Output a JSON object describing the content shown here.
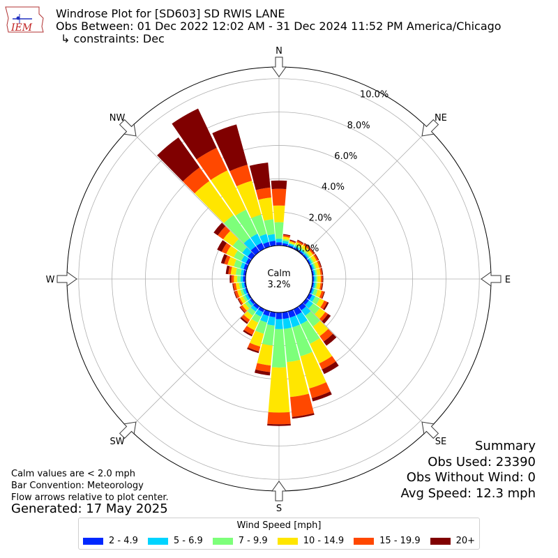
{
  "header": {
    "title_line1": "Windrose Plot for [SD603] SD RWIS LANE",
    "title_line2": "Obs Between: 01 Dec 2022 12:02 AM - 31 Dec 2024 11:52 PM America/Chicago",
    "title_line3": "↳ constraints: Dec",
    "logo_text": "IEM"
  },
  "notes": {
    "calm": "Calm values are < 2.0 mph",
    "bar_convention": "Bar Convention: Meteorology",
    "flow": "Flow arrows relative to plot center.",
    "generated": "Generated: 17 May 2025"
  },
  "summary": {
    "title": "Summary",
    "obs_used": "Obs Used: 23390",
    "obs_without_wind": "Obs Without Wind: 0",
    "avg_speed": "Avg Speed: 12.3 mph"
  },
  "legend": {
    "title": "Wind Speed [mph]",
    "items": [
      {
        "label": "2 - 4.9",
        "color": "#0028ff"
      },
      {
        "label": "5 - 6.9",
        "color": "#00d4ff"
      },
      {
        "label": "7 - 9.9",
        "color": "#7dff7a"
      },
      {
        "label": "10 - 14.9",
        "color": "#ffe600"
      },
      {
        "label": "15 - 19.9",
        "color": "#ff4800"
      },
      {
        "label": "20+",
        "color": "#800000"
      }
    ]
  },
  "chart_data": {
    "type": "windrose",
    "calm_label": "Calm",
    "calm_percent": "3.2%",
    "radial_ticks": [
      "0.0%",
      "2.0%",
      "4.0%",
      "6.0%",
      "8.0%",
      "10.0%"
    ],
    "radial_tick_values": [
      0,
      2,
      4,
      6,
      8,
      10
    ],
    "rmax": 10.7,
    "direction_labels": [
      "N",
      "NE",
      "E",
      "SE",
      "S",
      "SW",
      "W",
      "NW"
    ],
    "directions_deg": [
      0,
      10,
      20,
      30,
      40,
      50,
      60,
      70,
      80,
      90,
      100,
      110,
      120,
      130,
      140,
      150,
      160,
      170,
      180,
      190,
      200,
      210,
      220,
      230,
      240,
      250,
      260,
      270,
      280,
      290,
      300,
      310,
      320,
      330,
      340,
      350
    ],
    "bins": [
      "2 - 4.9",
      "5 - 6.9",
      "7 - 9.9",
      "10 - 14.9",
      "15 - 19.9",
      "20+"
    ],
    "cumulative": [
      [
        0.2,
        0.4,
        1.4,
        2.4,
        3.4,
        3.9
      ],
      [
        0.15,
        0.3,
        0.4,
        0.55,
        0.65,
        0.7
      ],
      [
        0.1,
        0.2,
        0.25,
        0.35,
        0.4,
        0.45
      ],
      [
        0.1,
        0.2,
        0.3,
        0.45,
        0.55,
        0.6
      ],
      [
        0.1,
        0.2,
        0.3,
        0.5,
        0.6,
        0.65
      ],
      [
        0.1,
        0.2,
        0.3,
        0.5,
        0.6,
        0.65
      ],
      [
        0.1,
        0.2,
        0.3,
        0.5,
        0.6,
        0.65
      ],
      [
        0.1,
        0.2,
        0.3,
        0.5,
        0.6,
        0.65
      ],
      [
        0.1,
        0.2,
        0.3,
        0.5,
        0.6,
        0.65
      ],
      [
        0.1,
        0.2,
        0.3,
        0.5,
        0.6,
        0.65
      ],
      [
        0.1,
        0.2,
        0.3,
        0.5,
        0.6,
        0.65
      ],
      [
        0.1,
        0.2,
        0.4,
        0.65,
        0.8,
        0.85
      ],
      [
        0.2,
        0.4,
        0.7,
        1.0,
        1.2,
        1.3
      ],
      [
        0.2,
        0.5,
        1.0,
        1.4,
        1.6,
        1.8
      ],
      [
        0.3,
        0.7,
        1.5,
        2.2,
        2.6,
        2.9
      ],
      [
        0.4,
        1.0,
        2.3,
        3.6,
        4.0,
        4.3
      ],
      [
        0.4,
        1.0,
        2.8,
        4.8,
        5.4,
        5.6
      ],
      [
        0.4,
        1.0,
        3.0,
        5.1,
        6.3,
        6.4
      ],
      [
        0.4,
        1.0,
        3.3,
        6.0,
        6.7,
        6.8
      ],
      [
        0.3,
        0.8,
        2.0,
        3.2,
        3.6,
        3.8
      ],
      [
        0.3,
        0.7,
        1.4,
        2.2,
        2.5,
        2.6
      ],
      [
        0.2,
        0.5,
        0.9,
        1.4,
        1.7,
        1.8
      ],
      [
        0.2,
        0.4,
        0.7,
        1.0,
        1.2,
        1.3
      ],
      [
        0.15,
        0.3,
        0.5,
        0.7,
        0.85,
        0.9
      ],
      [
        0.1,
        0.25,
        0.4,
        0.6,
        0.7,
        0.75
      ],
      [
        0.1,
        0.25,
        0.4,
        0.6,
        0.75,
        0.8
      ],
      [
        0.1,
        0.25,
        0.4,
        0.6,
        0.75,
        0.8
      ],
      [
        0.15,
        0.3,
        0.5,
        0.7,
        0.85,
        0.95
      ],
      [
        0.15,
        0.3,
        0.6,
        0.9,
        1.05,
        1.2
      ],
      [
        0.2,
        0.4,
        0.8,
        1.2,
        1.4,
        1.6
      ],
      [
        0.2,
        0.5,
        1.0,
        1.5,
        1.8,
        2.1
      ],
      [
        0.3,
        0.7,
        1.4,
        2.1,
        2.5,
        2.8
      ],
      [
        0.4,
        1.0,
        2.7,
        5.2,
        6.2,
        8.4
      ],
      [
        0.4,
        1.0,
        2.6,
        5.2,
        6.7,
        9.3
      ],
      [
        0.3,
        0.8,
        2.0,
        4.1,
        5.1,
        7.6
      ],
      [
        0.3,
        0.7,
        1.6,
        2.9,
        3.5,
        5.0
      ]
    ]
  }
}
